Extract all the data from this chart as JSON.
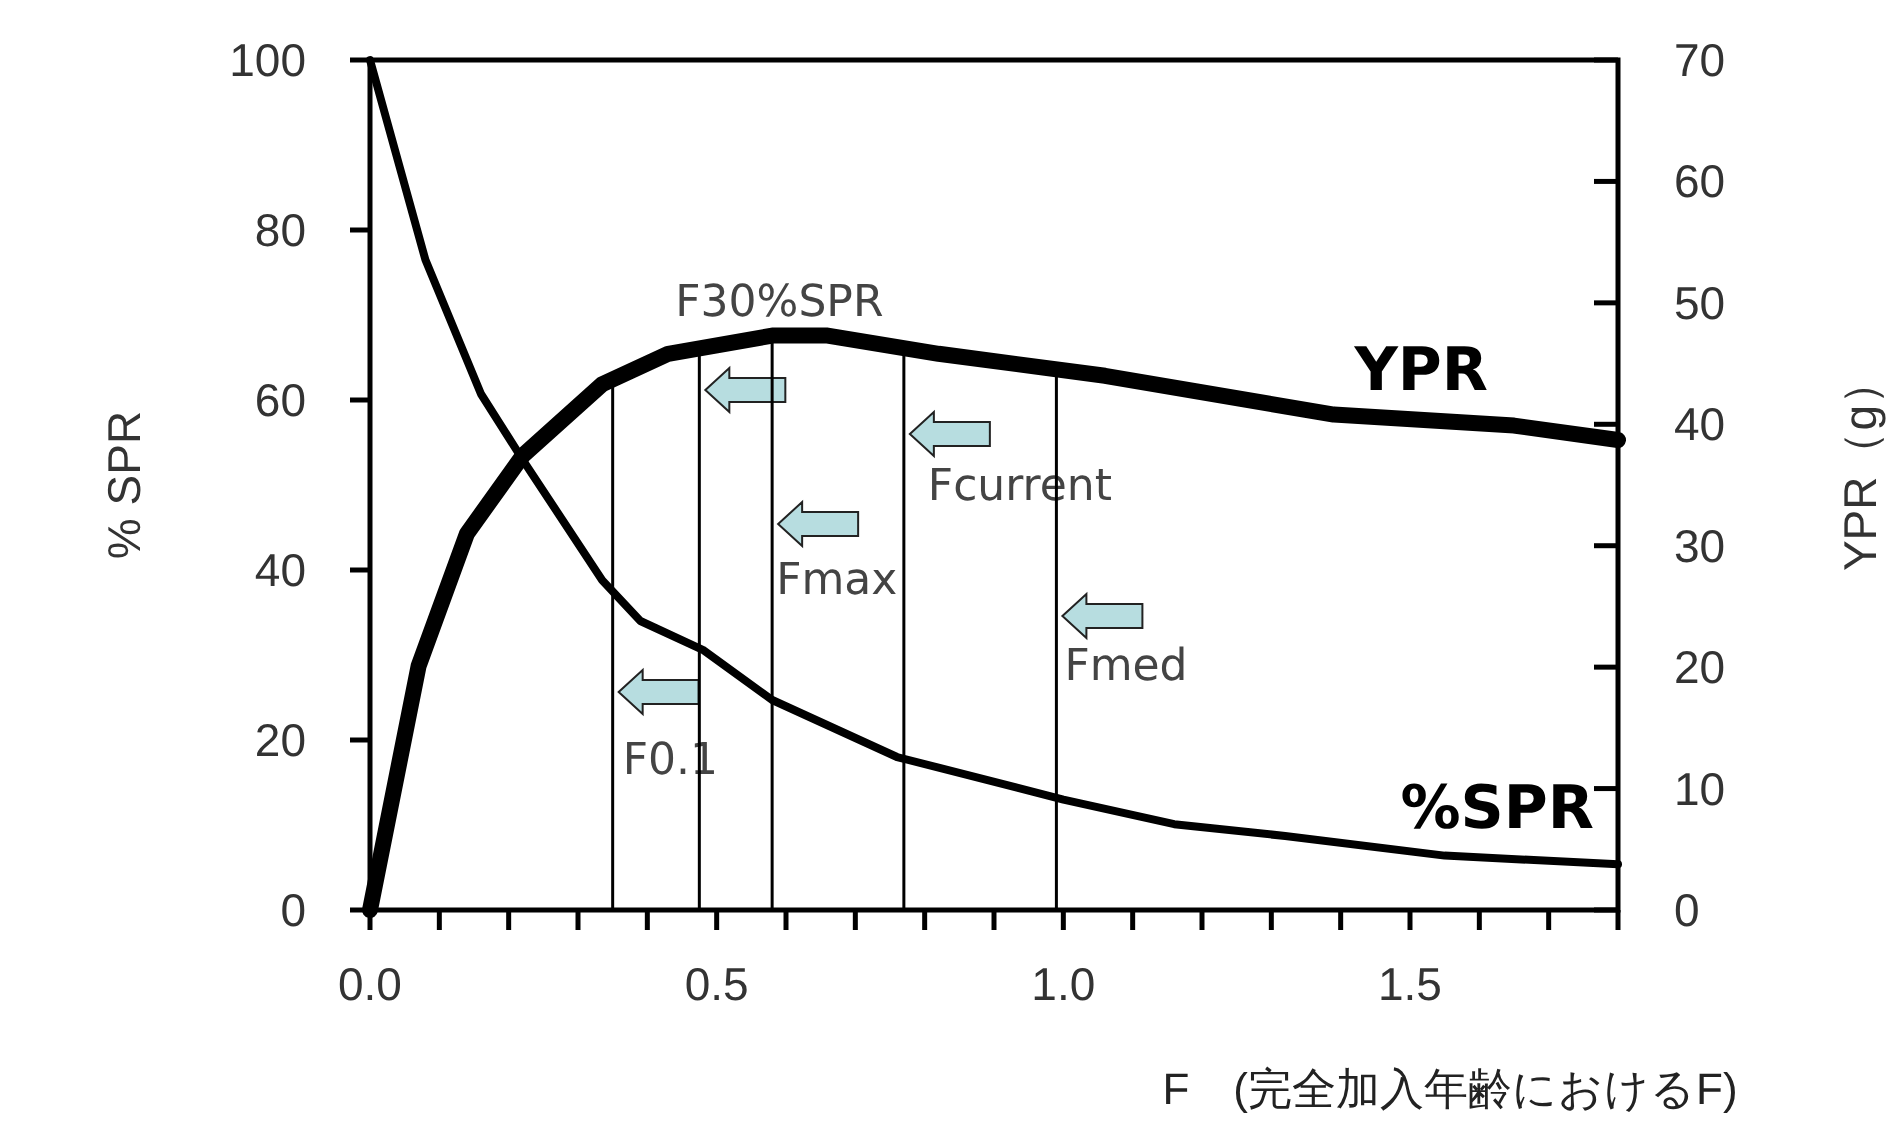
{
  "chart_data": {
    "type": "line",
    "xlabel": "F　(完全加入年齢におけるF)",
    "ylabel": "% SPR",
    "y2label": "YPR（g）",
    "xlim": [
      0,
      1.8
    ],
    "xticks": [
      {
        "value": 0,
        "label": "0.0"
      },
      {
        "value": 0.1,
        "label": null
      },
      {
        "value": 0.2,
        "label": null
      },
      {
        "value": 0.3,
        "label": null
      },
      {
        "value": 0.4,
        "label": null
      },
      {
        "value": 0.5,
        "label": "0.5"
      },
      {
        "value": 0.6,
        "label": null
      },
      {
        "value": 0.7,
        "label": null
      },
      {
        "value": 0.8,
        "label": null
      },
      {
        "value": 0.9,
        "label": null
      },
      {
        "value": 1.0,
        "label": "1.0"
      },
      {
        "value": 1.1,
        "label": null
      },
      {
        "value": 1.2,
        "label": null
      },
      {
        "value": 1.3,
        "label": null
      },
      {
        "value": 1.4,
        "label": null
      },
      {
        "value": 1.5,
        "label": "1.5"
      },
      {
        "value": 1.6,
        "label": null
      },
      {
        "value": 1.7,
        "label": null
      },
      {
        "value": 1.8,
        "label": null
      }
    ],
    "ylim": [
      0,
      100
    ],
    "yticks": [
      0,
      20,
      40,
      60,
      80,
      100
    ],
    "y2lim": [
      0,
      70
    ],
    "y2ticks": [
      0,
      10,
      20,
      30,
      40,
      50,
      60,
      70
    ],
    "grid": false,
    "legend": false,
    "marker": "none",
    "line_style": "solid",
    "series": [
      {
        "name": "%SPR",
        "color": "#000000",
        "x": [
          0,
          0.08,
          0.16,
          0.22,
          0.335,
          0.39,
          0.48,
          0.58,
          0.76,
          1.0,
          1.16,
          1.32,
          1.55,
          1.8
        ],
        "values": [
          100,
          76.5,
          60.7,
          53,
          38.8,
          34,
          30.6,
          24.7,
          18,
          13,
          10.1,
          8.7,
          6.4,
          5.4
        ]
      },
      {
        "name": "YPR",
        "color": "#000000",
        "axis": "y2",
        "x": [
          0,
          0.07,
          0.14,
          0.22,
          0.335,
          0.43,
          0.58,
          0.66,
          0.82,
          1.06,
          1.39,
          1.65,
          1.8
        ],
        "values": [
          0,
          20.1,
          31,
          37.4,
          43.3,
          45.8,
          47.3,
          47.3,
          45.8,
          44,
          40.8,
          39.9,
          38.7
        ]
      }
    ],
    "ref_lines": [
      {
        "axis": "x",
        "value": 0.35,
        "label": "F0.1",
        "color": "#000000"
      },
      {
        "axis": "x",
        "value": 0.475,
        "label": "F30%SPR",
        "color": "#000000"
      },
      {
        "axis": "x",
        "value": 0.58,
        "label": "Fmax",
        "color": "#000000"
      },
      {
        "axis": "x",
        "value": 0.77,
        "label": "Fcurrent",
        "color": "#000000"
      },
      {
        "axis": "x",
        "value": 0.99,
        "label": "Fmed",
        "color": "#000000"
      }
    ]
  }
}
